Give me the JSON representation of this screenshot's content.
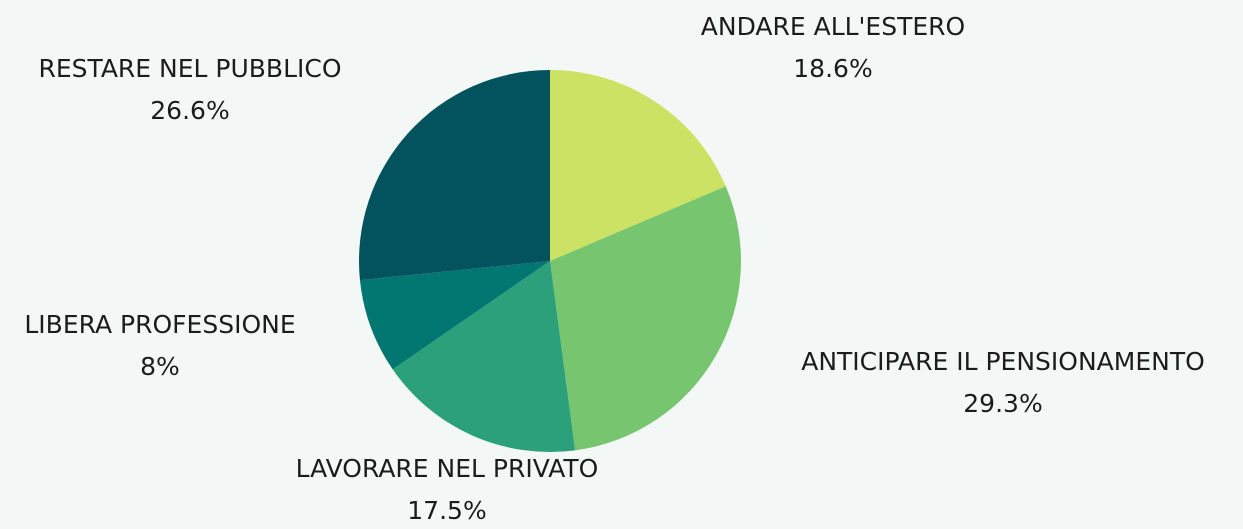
{
  "chart_data": {
    "type": "pie",
    "categories": [
      "ANDARE ALL'ESTERO",
      "ANTICIPARE IL PENSIONAMENTO",
      "LAVORARE NEL PRIVATO",
      "LIBERA PROFESSIONE",
      "RESTARE NEL PUBBLICO"
    ],
    "values": [
      18.6,
      29.3,
      17.5,
      8,
      26.6
    ],
    "value_labels": [
      "18.6%",
      "29.3%",
      "17.5%",
      "8%",
      "26.6%"
    ],
    "colors": [
      "#cce264",
      "#77c66f",
      "#2ca07a",
      "#027772",
      "#02535d"
    ]
  }
}
